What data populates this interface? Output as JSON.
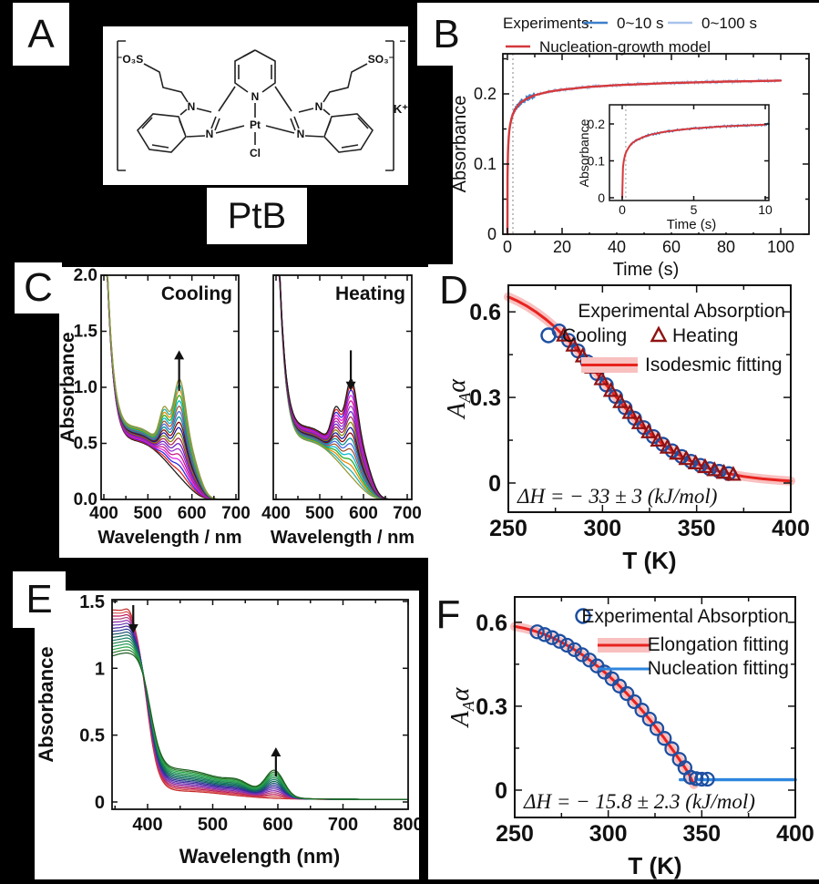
{
  "background": "#000000",
  "panel_letters": {
    "A": "A",
    "B": "B",
    "C": "C",
    "D": "D",
    "E": "E",
    "F": "F"
  },
  "panelA": {
    "compound_label": "PtB",
    "labels": {
      "left_sulfonate": "⁻O₃S",
      "right_sulfonate": "SO₃⁻",
      "n_left_top": "N",
      "n_left_bottom": "N",
      "n_right_top": "N",
      "n_right_bottom": "N",
      "n_pyridine": "N",
      "platinum": "Pt",
      "chloride": "Cl",
      "potassium": "K⁺",
      "bracket_charge": "−"
    }
  },
  "chart_data": [
    {
      "panel": "B",
      "type": "line",
      "xlabel": "Time (s)",
      "ylabel": "Absorbance",
      "xlim": [
        -1,
        102
      ],
      "ylim": [
        0,
        0.257
      ],
      "xticks": [
        0,
        20,
        40,
        60,
        80,
        100
      ],
      "xminor": [
        10,
        30,
        50,
        70,
        90
      ],
      "yticks": [
        0,
        0.1,
        0.2
      ],
      "ytick_labels": [
        "0",
        "0.1",
        "0.2"
      ],
      "yminor": [
        0.05,
        0.15,
        0.25
      ],
      "dashed_guide_x": 2,
      "legend": {
        "title": "Experiments:",
        "items": [
          {
            "label": "0~10 s",
            "color": "#3c80cc",
            "type": "line"
          },
          {
            "label": "0~100 s",
            "color": "#a9c2ec",
            "type": "line"
          },
          {
            "label": "Nucleation-growth model",
            "color": "#d5393c",
            "type": "line"
          }
        ]
      },
      "model": {
        "name": "Nucleation-growth model",
        "color": "#d5393c",
        "t": [
          0,
          0.05,
          0.1,
          0.2,
          0.3,
          0.5,
          0.7,
          1,
          1.5,
          2,
          3,
          4,
          5,
          7,
          10,
          15,
          20,
          30,
          40,
          50,
          60,
          70,
          80,
          90,
          100
        ],
        "A": [
          0,
          0.081,
          0.098,
          0.116,
          0.126,
          0.139,
          0.148,
          0.156,
          0.165,
          0.171,
          0.179,
          0.184,
          0.188,
          0.193,
          0.198,
          0.203,
          0.206,
          0.21,
          0.2125,
          0.214,
          0.2155,
          0.2165,
          0.2175,
          0.218,
          0.219
        ]
      },
      "experiments": [
        {
          "name": "0~100 s",
          "color": "#a9c2ec",
          "t_range": [
            0.05,
            100
          ],
          "noise": 0.0035
        },
        {
          "name": "0~10 s",
          "color": "#3c80cc",
          "t_range": [
            0.05,
            10
          ],
          "noise": 0.005
        }
      ],
      "inset": {
        "xlabel": "Time (s)",
        "ylabel": "Absorbance",
        "xlim": [
          -0.7,
          10.4
        ],
        "xticks": [
          0,
          5,
          10
        ],
        "yticks": [
          0,
          0.1,
          0.2
        ],
        "ytick_labels": [
          "0",
          "0.1",
          "0.2"
        ],
        "exp_color": "#2f7fd2",
        "noise": 0.0045
      }
    },
    {
      "panel": "C",
      "type": "line-family",
      "subplots": [
        {
          "title": "Cooling",
          "arrow": "up"
        },
        {
          "title": "Heating",
          "arrow": "down"
        }
      ],
      "xlabel": "Wavelength / nm",
      "ylabel": "Absorbance",
      "xlim": [
        400,
        700
      ],
      "ylim": [
        0,
        2
      ],
      "xticks": [
        400,
        500,
        600,
        700
      ],
      "xminor": [
        450,
        550,
        650
      ],
      "yticks": [
        0,
        0.5,
        1,
        1.5,
        2
      ],
      "ytick_labels": [
        "0.0",
        "0.5",
        "1.0",
        "1.5",
        "2.0"
      ],
      "n_curves": 19,
      "band_maxima_nm": [
        537,
        571
      ],
      "isosbestic_nm": 470,
      "peak_absorbance_range": [
        0.26,
        1.07
      ],
      "description": "Variable-temperature UV-vis spectra: aggregate band at 571 nm grows on cooling and shrinks on heating",
      "curve_model": {
        "edge": {
          "amp": 3.2,
          "x0": 398,
          "tau": 16
        },
        "shoulder": {
          "amp": 0.62,
          "center": 480,
          "sigma": 100,
          "cut_center": 615,
          "cut_width": 14,
          "scale_base": 0.8,
          "scale_span": 0.2
        },
        "aggregate_peaks": [
          {
            "amp": 0.34,
            "center": 537,
            "sigma": 15
          },
          {
            "amp": 0.68,
            "center": 571,
            "sigma": 20
          },
          {
            "amp": 0.3,
            "center": 598,
            "sigma": 30
          }
        ],
        "agg_cut": {
          "center": 648,
          "width": 14
        },
        "clip": 2.0
      },
      "colors": [
        "#1a1a1a",
        "#e31a1c",
        "#2626e0",
        "#e41ee4",
        "#c71585",
        "#9932cc",
        "#6a1fc4",
        "#aa2255",
        "#808000",
        "#14149c",
        "#8b0000",
        "#008b8b",
        "#4169e1",
        "#a0522d",
        "#00b8d4",
        "#22aa22",
        "#ee8800",
        "#20b2aa",
        "#969632"
      ]
    },
    {
      "panel": "D",
      "type": "scatter-line",
      "xlabel": "T (K)",
      "ylabel_parts": [
        "A",
        "A",
        "α"
      ],
      "xlim": [
        250,
        400
      ],
      "ylim": [
        -0.1,
        0.69
      ],
      "xticks": [
        250,
        300,
        350,
        400
      ],
      "xminor": [
        275,
        325,
        375
      ],
      "yticks": [
        0,
        0.3,
        0.6
      ],
      "ytick_labels": [
        "0",
        "0.3",
        "0.6"
      ],
      "yminor": [
        0.15,
        0.45
      ],
      "annotation": "ΔH = − 33 ± 3 (kJ/mol)",
      "legend_title": "Experimental Absorption",
      "series": [
        {
          "name": "Cooling",
          "marker": "circle",
          "color": "#1d4fa1",
          "points": [
            [
              277,
              0.533
            ],
            [
              282,
              0.5
            ],
            [
              287,
              0.463
            ],
            [
              292,
              0.425
            ],
            [
              297,
              0.384
            ],
            [
              302,
              0.344
            ],
            [
              307,
              0.303
            ],
            [
              312,
              0.264
            ],
            [
              317,
              0.227
            ],
            [
              322,
              0.194
            ],
            [
              327,
              0.163
            ],
            [
              332,
              0.136
            ],
            [
              337,
              0.113
            ],
            [
              342,
              0.093
            ],
            [
              347,
              0.076
            ],
            [
              352,
              0.062
            ],
            [
              357,
              0.05
            ],
            [
              362,
              0.041
            ],
            [
              367,
              0.033
            ]
          ]
        },
        {
          "name": "Heating",
          "marker": "triangle",
          "color": "#8f1212",
          "points": [
            [
              279.5,
              0.517
            ],
            [
              284.5,
              0.482
            ],
            [
              289.5,
              0.444
            ],
            [
              294.5,
              0.405
            ],
            [
              299.5,
              0.364
            ],
            [
              304.5,
              0.323
            ],
            [
              309.5,
              0.284
            ],
            [
              314.5,
              0.246
            ],
            [
              319.5,
              0.21
            ],
            [
              324.5,
              0.178
            ],
            [
              329.5,
              0.149
            ],
            [
              334.5,
              0.124
            ],
            [
              339.5,
              0.103
            ],
            [
              344.5,
              0.084
            ],
            [
              349.5,
              0.069
            ],
            [
              354.5,
              0.056
            ],
            [
              359.5,
              0.045
            ],
            [
              364.5,
              0.036
            ],
            [
              369.5,
              0.029
            ]
          ]
        },
        {
          "name": "Isodesmic fitting",
          "marker": "line",
          "color": "#e8231f",
          "band_color": "#f9c0c0",
          "x": [
            250,
            255,
            260,
            265,
            270,
            275,
            280,
            285,
            290,
            295,
            300,
            305,
            310,
            315,
            320,
            325,
            330,
            335,
            340,
            345,
            350,
            355,
            360,
            365,
            370,
            375,
            380,
            385,
            390,
            395,
            400
          ],
          "y": [
            0.6528,
            0.6376,
            0.6194,
            0.598,
            0.5734,
            0.545,
            0.5132,
            0.4781,
            0.4404,
            0.4006,
            0.36,
            0.3193,
            0.2795,
            0.2418,
            0.2067,
            0.1749,
            0.1465,
            0.1218,
            0.1005,
            0.0824,
            0.0672,
            0.0545,
            0.0441,
            0.0356,
            0.0287,
            0.023,
            0.0185,
            0.0148,
            0.0118,
            0.0094,
            0.0075
          ]
        }
      ]
    },
    {
      "panel": "E",
      "type": "line-family",
      "xlabel": "Wavelength (nm)",
      "ylabel": "Absorbance",
      "xlim": [
        345,
        800
      ],
      "ylim": [
        0,
        1.57
      ],
      "xticks": [
        400,
        500,
        600,
        700,
        800
      ],
      "xminor": [
        350,
        450,
        550,
        650,
        750
      ],
      "yticks": [
        0,
        0.5,
        1,
        1.5
      ],
      "ytick_labels": [
        "0",
        "0.5",
        "1",
        "1.5"
      ],
      "n_curves": 16,
      "arrows": [
        {
          "dir": "down",
          "wavelength_nm": 378
        },
        {
          "dir": "up",
          "wavelength_nm": 597
        }
      ],
      "isosbestic_nm": 392,
      "description": "Spectral evolution: band near 375 nm decreases while aggregate band near 595 nm increases",
      "curve_model": {
        "drop": {
          "amp0": 1.4,
          "amp1": 1.0,
          "center0": 398,
          "center1": 404,
          "width": 9
        },
        "broad": {
          "amp0": 0.06,
          "amp1": 0.22,
          "center": 450,
          "sigma": 100
        },
        "bump": {
          "amp1": 0.05,
          "center": 540,
          "sigma": 25
        },
        "peak": {
          "amp1": 0.19,
          "center": 595,
          "sigma": 20
        },
        "vibronic": {
          "amp": 0.05,
          "center": 372,
          "sigma": 9
        },
        "base": 0.02
      },
      "colors": [
        "#c62828",
        "#d4504e",
        "#c2185b",
        "#ad4079",
        "#8e24aa",
        "#6a3ab2",
        "#4527a0",
        "#283593",
        "#1a5276",
        "#0e6655",
        "#117a65",
        "#1e8449",
        "#239b56",
        "#28a745",
        "#2e7d32",
        "#1b5e20"
      ]
    },
    {
      "panel": "F",
      "type": "scatter-line",
      "xlabel": "T (K)",
      "ylabel_parts": [
        "A",
        "A",
        "α"
      ],
      "xlim": [
        250,
        400
      ],
      "ylim": [
        -0.1,
        0.69
      ],
      "xticks": [
        250,
        300,
        350,
        400
      ],
      "xminor": [
        275,
        325,
        375
      ],
      "yticks": [
        0,
        0.3,
        0.6
      ],
      "ytick_labels": [
        "0",
        "0.3",
        "0.6"
      ],
      "yminor": [
        0.15,
        0.45
      ],
      "annotation": "ΔH = − 15.8 ± 2.3 (kJ/mol)",
      "series": [
        {
          "name": "Experimental Absorption",
          "marker": "circle",
          "color": "#1d4fa1",
          "points": [
            [
              262,
              0.566
            ],
            [
              266,
              0.556
            ],
            [
              270,
              0.545
            ],
            [
              274,
              0.532
            ],
            [
              278,
              0.518
            ],
            [
              282,
              0.502
            ],
            [
              286,
              0.484
            ],
            [
              290,
              0.465
            ],
            [
              294,
              0.444
            ],
            [
              298,
              0.422
            ],
            [
              302,
              0.398
            ],
            [
              306,
              0.372
            ],
            [
              310,
              0.345
            ],
            [
              314,
              0.316
            ],
            [
              318,
              0.286
            ],
            [
              322,
              0.254
            ],
            [
              326,
              0.22
            ],
            [
              330,
              0.185
            ],
            [
              334,
              0.148
            ],
            [
              338,
              0.11
            ],
            [
              341,
              0.08
            ],
            [
              344,
              0.046
            ],
            [
              347,
              0.041
            ],
            [
              350,
              0.039
            ],
            [
              353,
              0.039
            ]
          ]
        },
        {
          "name": "Elongation fitting",
          "marker": "line",
          "color": "#e8231f",
          "band_color": "#f9c0c0",
          "x": [
            250,
            255,
            260,
            265,
            270,
            275,
            280,
            285,
            290,
            295,
            300,
            305,
            310,
            315,
            320,
            325,
            330,
            335,
            340,
            343,
            345,
            345.8
          ],
          "y": [
            0.585,
            0.5788,
            0.57,
            0.5588,
            0.545,
            0.5288,
            0.51,
            0.4888,
            0.465,
            0.4388,
            0.41,
            0.3788,
            0.345,
            0.3088,
            0.27,
            0.2288,
            0.185,
            0.1388,
            0.09,
            0.0596,
            0.031,
            0.02
          ]
        },
        {
          "name": "Nucleation fitting",
          "marker": "line",
          "color": "#2e86de",
          "x": [
            338.5,
            400
          ],
          "y": [
            0.037,
            0.037
          ]
        }
      ]
    }
  ]
}
